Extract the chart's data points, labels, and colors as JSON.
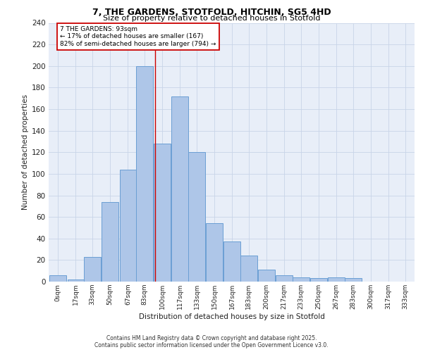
{
  "title_line1": "7, THE GARDENS, STOTFOLD, HITCHIN, SG5 4HD",
  "title_line2": "Size of property relative to detached houses in Stotfold",
  "xlabel": "Distribution of detached houses by size in Stotfold",
  "ylabel": "Number of detached properties",
  "bar_labels": [
    "0sqm",
    "17sqm",
    "33sqm",
    "50sqm",
    "67sqm",
    "83sqm",
    "100sqm",
    "117sqm",
    "133sqm",
    "150sqm",
    "167sqm",
    "183sqm",
    "200sqm",
    "217sqm",
    "233sqm",
    "250sqm",
    "267sqm",
    "283sqm",
    "300sqm",
    "317sqm",
    "333sqm"
  ],
  "bar_values": [
    6,
    2,
    23,
    74,
    104,
    200,
    128,
    172,
    120,
    54,
    37,
    24,
    11,
    6,
    4,
    3,
    4,
    3,
    0,
    0,
    0
  ],
  "bar_color": "#aec6e8",
  "bar_edge_color": "#6b9fd4",
  "grid_color": "#c8d4e8",
  "background_color": "#e8eef8",
  "vline_color": "#cc0000",
  "annotation_text": "7 THE GARDENS: 93sqm\n← 17% of detached houses are smaller (167)\n82% of semi-detached houses are larger (794) →",
  "annotation_box_color": "#ffffff",
  "annotation_box_edge": "#cc0000",
  "ylim": [
    0,
    240
  ],
  "yticks": [
    0,
    20,
    40,
    60,
    80,
    100,
    120,
    140,
    160,
    180,
    200,
    220,
    240
  ],
  "footer_line1": "Contains HM Land Registry data © Crown copyright and database right 2025.",
  "footer_line2": "Contains public sector information licensed under the Open Government Licence v3.0.",
  "fig_width": 6.0,
  "fig_height": 5.0,
  "dpi": 100
}
